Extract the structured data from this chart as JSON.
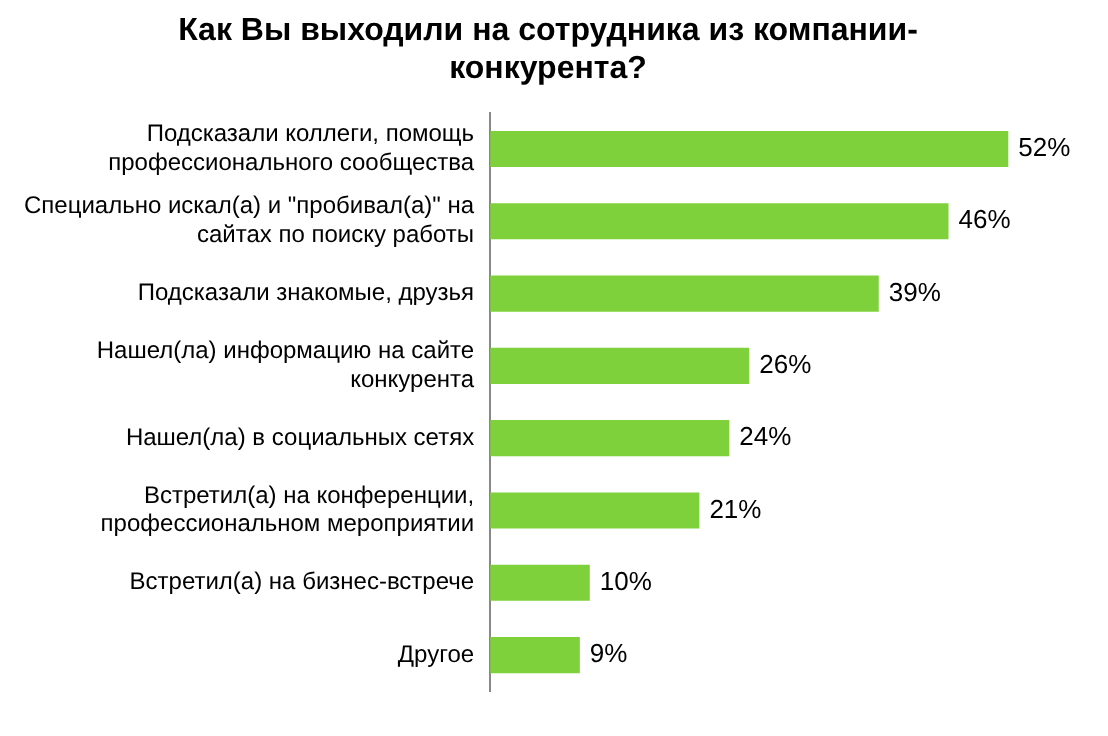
{
  "chart_data": {
    "type": "bar",
    "orientation": "horizontal",
    "title": "Как Вы выходили на сотрудника из компании-конкурента?",
    "categories": [
      "Подсказали коллеги, помощь профессионального сообщества",
      "Специально искал(а) и \"пробивал(а)\" на сайтах по поиску работы",
      "Подсказали знакомые, друзья",
      "Нашел(ла) информацию на сайте конкурента",
      "Нашел(ла) в социальных сетях",
      "Встретил(а) на конференции, профессиональном мероприятии",
      "Встретил(а) на бизнес-встрече",
      "Другое"
    ],
    "values": [
      52,
      46,
      39,
      26,
      24,
      21,
      10,
      9
    ],
    "value_labels": [
      "52%",
      "46%",
      "39%",
      "26%",
      "24%",
      "21%",
      "10%",
      "9%"
    ],
    "color": "#7ed13a",
    "tick_labels": "y"
  }
}
